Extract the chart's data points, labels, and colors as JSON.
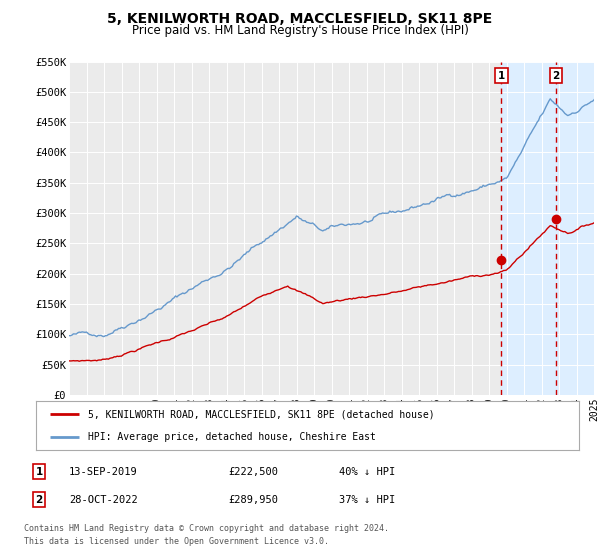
{
  "title": "5, KENILWORTH ROAD, MACCLESFIELD, SK11 8PE",
  "subtitle": "Price paid vs. HM Land Registry's House Price Index (HPI)",
  "xlim": [
    1995,
    2025
  ],
  "ylim": [
    0,
    550000
  ],
  "yticks": [
    0,
    50000,
    100000,
    150000,
    200000,
    250000,
    300000,
    350000,
    400000,
    450000,
    500000,
    550000
  ],
  "ytick_labels": [
    "£0",
    "£50K",
    "£100K",
    "£150K",
    "£200K",
    "£250K",
    "£300K",
    "£350K",
    "£400K",
    "£450K",
    "£500K",
    "£550K"
  ],
  "xticks": [
    1995,
    1996,
    1997,
    1998,
    1999,
    2000,
    2001,
    2002,
    2003,
    2004,
    2005,
    2006,
    2007,
    2008,
    2009,
    2010,
    2011,
    2012,
    2013,
    2014,
    2015,
    2016,
    2017,
    2018,
    2019,
    2020,
    2021,
    2022,
    2023,
    2024,
    2025
  ],
  "sale_color": "#cc0000",
  "hpi_color": "#6699cc",
  "marker1_x": 2019.71,
  "marker1_y": 222500,
  "marker2_x": 2022.83,
  "marker2_y": 289950,
  "vline1_x": 2019.71,
  "vline2_x": 2022.83,
  "legend_label1": "5, KENILWORTH ROAD, MACCLESFIELD, SK11 8PE (detached house)",
  "legend_label2": "HPI: Average price, detached house, Cheshire East",
  "annotation1_date": "13-SEP-2019",
  "annotation1_price": "£222,500",
  "annotation1_hpi": "40% ↓ HPI",
  "annotation2_date": "28-OCT-2022",
  "annotation2_price": "£289,950",
  "annotation2_hpi": "37% ↓ HPI",
  "footnote1": "Contains HM Land Registry data © Crown copyright and database right 2024.",
  "footnote2": "This data is licensed under the Open Government Licence v3.0.",
  "background_color": "#ffffff",
  "plot_bg_color": "#ebebeb",
  "shade_color": "#ddeeff",
  "grid_color": "#ffffff",
  "title_fontsize": 10,
  "subtitle_fontsize": 8.5
}
